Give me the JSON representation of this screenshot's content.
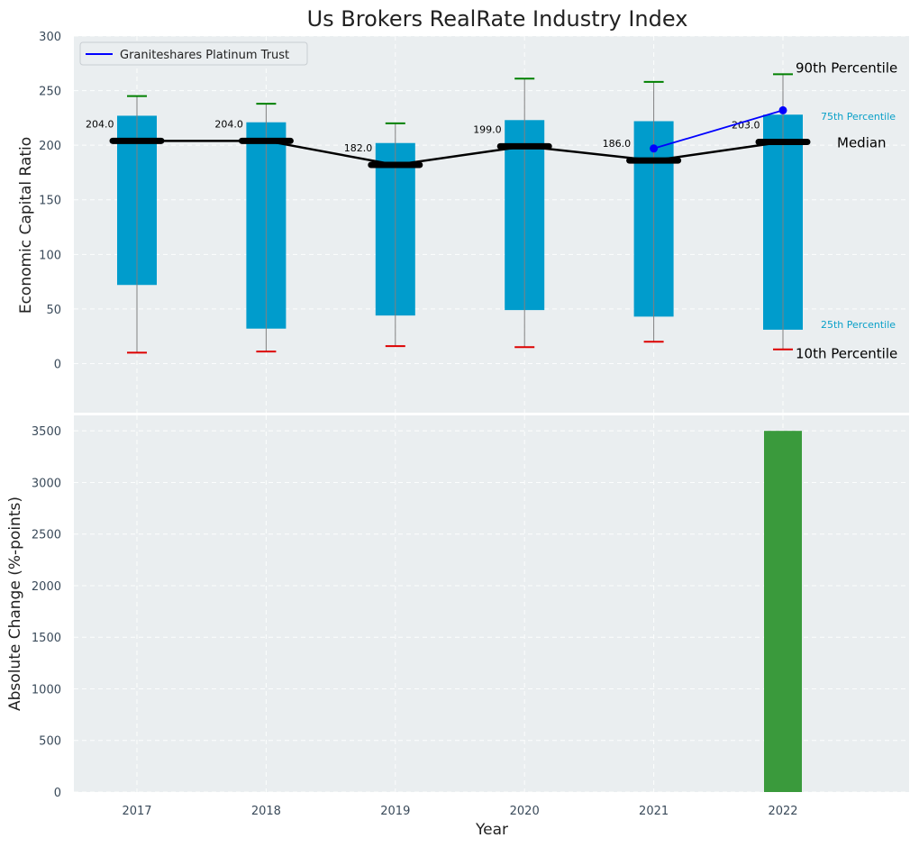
{
  "chart_data": {
    "title": "Us Brokers RealRate Industry Index",
    "xlabel": "Year",
    "top_panel": {
      "type": "box",
      "ylabel": "Economic Capital Ratio",
      "ylim": [
        -45,
        300
      ],
      "yticks": [
        0,
        50,
        100,
        150,
        200,
        250,
        300
      ],
      "categories": [
        "2017",
        "2018",
        "2019",
        "2020",
        "2021",
        "2022"
      ],
      "p10": [
        10,
        11,
        16,
        15,
        20,
        13
      ],
      "p25": [
        72,
        32,
        44,
        49,
        43,
        31
      ],
      "median": [
        204,
        204,
        182,
        199,
        186,
        203
      ],
      "p75": [
        227,
        221,
        202,
        223,
        222,
        228
      ],
      "p90": [
        245,
        238,
        220,
        261,
        258,
        265
      ],
      "median_labels": [
        "204.0",
        "204.0",
        "182.0",
        "199.0",
        "186.0",
        "203.0"
      ],
      "series": [
        {
          "name": "Graniteshares Platinum Trust",
          "x": [
            "2021",
            "2022"
          ],
          "values": [
            197,
            232
          ],
          "color": "#0000ff"
        }
      ],
      "legend_position": "top-left",
      "annotations": {
        "p90": "90th Percentile",
        "p75": "75th Percentile",
        "median": "Median",
        "p25": "25th Percentile",
        "p10": "10th Percentile"
      },
      "grid": true
    },
    "bottom_panel": {
      "type": "bar",
      "ylabel": "Absolute Change (%-points)",
      "ylim": [
        0,
        3650
      ],
      "yticks": [
        0,
        500,
        1000,
        1500,
        2000,
        2500,
        3000,
        3500
      ],
      "categories": [
        "2017",
        "2018",
        "2019",
        "2020",
        "2021",
        "2022"
      ],
      "values": [
        0,
        0,
        0,
        0,
        0,
        3500
      ],
      "grid": true
    },
    "colors": {
      "box": "#009ccc",
      "median": "#000000",
      "p90_cap": "#008000",
      "p10_cap": "#dd0000",
      "whisker": "#808080",
      "series": "#0000ff",
      "bar": "#3a9a3c",
      "panel_bg": "#eaeef0"
    }
  }
}
